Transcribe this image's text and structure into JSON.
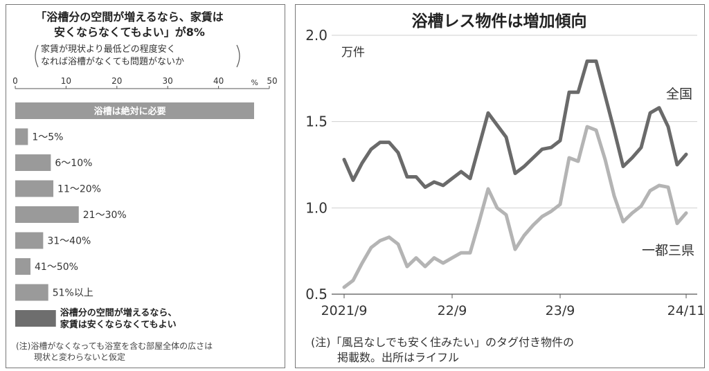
{
  "colors": {
    "bar_normal": "#9a9a9a",
    "bar_dark": "#6e6e6e",
    "line_national": "#6a6a6a",
    "line_metro": "#b4b4b4",
    "grid": "#cfcfcf"
  },
  "chart_data": [
    {
      "type": "bar",
      "orientation": "horizontal",
      "title_lines": [
        "「浴槽分の空間が増えるなら、家賃は",
        "安くならなくてもよい」が8%"
      ],
      "subtitle_lines": [
        "家賃が現状より最低どの程度安く",
        "なれば浴槽がなくても問題がないか"
      ],
      "unit_label": "%",
      "xlim": [
        0,
        50
      ],
      "ticks": [
        0,
        10,
        20,
        30,
        40,
        50
      ],
      "categories": [
        "浴槽は絶対に必要",
        "1～5%",
        "6～10%",
        "11～20%",
        "21～30%",
        "31～40%",
        "41～50%",
        "51%以上",
        "浴槽分の空間が増えるなら、家賃は安くならなくてもよい"
      ],
      "label_lines": [
        [
          "浴槽は絶対に必要"
        ],
        [
          "1～5%"
        ],
        [
          "6～10%"
        ],
        [
          "11～20%"
        ],
        [
          "21～30%"
        ],
        [
          "31～40%"
        ],
        [
          "41～50%"
        ],
        [
          "51%以上"
        ],
        [
          "浴槽分の空間が増えるなら、",
          "家賃は安くならなくてもよい"
        ]
      ],
      "values": [
        47,
        2.5,
        7,
        7.5,
        12.5,
        5.5,
        3,
        6.5,
        8
      ],
      "note_lines": [
        "(注)浴槽がなくなっても浴室を含む部屋全体の広さは",
        "現状と変わらないと仮定"
      ]
    },
    {
      "type": "line",
      "title": "浴槽レス物件は増加傾向",
      "unit_label": "万件",
      "ylim": [
        0.5,
        2.0
      ],
      "yticks": [
        "0.5",
        "1.0",
        "1.5",
        "2.0"
      ],
      "xticks": [
        "2021/9",
        "22/9",
        "23/9",
        "24/11"
      ],
      "xtick_positions": [
        0,
        12,
        24,
        38
      ],
      "series": [
        {
          "name": "全国",
          "values": [
            1.28,
            1.16,
            1.26,
            1.34,
            1.38,
            1.38,
            1.32,
            1.18,
            1.18,
            1.12,
            1.15,
            1.13,
            1.17,
            1.21,
            1.17,
            1.36,
            1.55,
            1.48,
            1.41,
            1.2,
            1.24,
            1.29,
            1.34,
            1.35,
            1.39,
            1.67,
            1.67,
            1.85,
            1.85,
            1.65,
            1.45,
            1.24,
            1.29,
            1.35,
            1.55,
            1.58,
            1.47,
            1.25,
            1.31
          ]
        },
        {
          "name": "一都三県",
          "values": [
            0.54,
            0.58,
            0.68,
            0.77,
            0.81,
            0.83,
            0.79,
            0.66,
            0.71,
            0.66,
            0.71,
            0.68,
            0.71,
            0.74,
            0.74,
            0.92,
            1.11,
            1.0,
            0.96,
            0.76,
            0.84,
            0.9,
            0.95,
            0.98,
            1.02,
            1.29,
            1.27,
            1.47,
            1.45,
            1.28,
            1.07,
            0.92,
            0.97,
            1.01,
            1.1,
            1.13,
            1.12,
            0.91,
            0.97
          ]
        }
      ],
      "note_lines": [
        "(注)「風呂なしでも安く住みたい」のタグ付き物件の",
        "掲載数。出所はライフル"
      ]
    }
  ]
}
